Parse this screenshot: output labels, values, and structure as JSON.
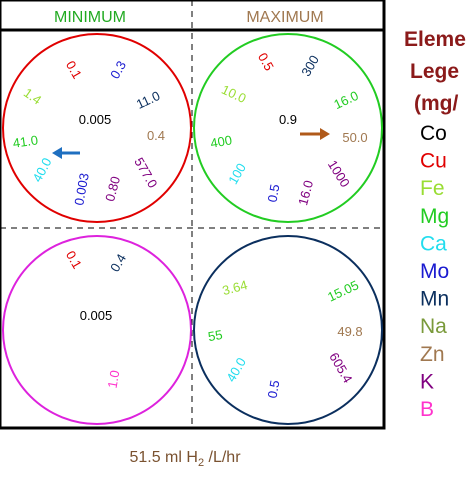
{
  "header": {
    "minimum": "MINIMUM",
    "maximum": "MAXIMUM"
  },
  "legend": {
    "title_lines": [
      "Eleme",
      "Lege",
      "(mg/"
    ],
    "items": [
      {
        "label": "Co",
        "color": "#000000"
      },
      {
        "label": "Cu",
        "color": "#e00000"
      },
      {
        "label": "Fe",
        "color": "#99dd33"
      },
      {
        "label": "Mg",
        "color": "#22cc22"
      },
      {
        "label": "Ca",
        "color": "#22ddee"
      },
      {
        "label": "Mo",
        "color": "#1a1ad0"
      },
      {
        "label": "Mn",
        "color": "#0b2f5e"
      },
      {
        "label": "Na",
        "color": "#7a9a3a"
      },
      {
        "label": "Zn",
        "color": "#a07850"
      },
      {
        "label": "K",
        "color": "#800080"
      },
      {
        "label": "B",
        "color": "#ff33cc"
      }
    ]
  },
  "footer": {
    "flow_prefix": "51.5 ml H",
    "flow_sub": "2",
    "flow_suffix": " /L/hr"
  },
  "circles": {
    "top_left": {
      "ring_color": "#e00000",
      "values": {
        "cu": "0.1",
        "mo": "0.3",
        "fe": "1.4",
        "mn": "11.0",
        "co": "0.005",
        "mg": "41.0",
        "zn": "0.4",
        "ca": "40.0",
        "na": "577.0",
        "mo2": "0.003",
        "k": "0.80"
      },
      "arrow": {
        "direction": "left",
        "color": "#1f6fc0"
      }
    },
    "top_right": {
      "ring_color": "#22cc22",
      "values": {
        "cu": "0.5",
        "mn": "300",
        "fe": "10.0",
        "mg": "16.0",
        "mg2": "400",
        "co": "0.9",
        "zn": "50.0",
        "ca": "100",
        "na": "1000",
        "mo": "0.5",
        "k": "16.0"
      },
      "arrow": {
        "direction": "right",
        "color": "#b05a1a"
      }
    },
    "bottom_left": {
      "ring_color": "#dd22dd",
      "values": {
        "cu": "0.1",
        "mn": "0.4",
        "co": "0.005",
        "b": "1.0"
      }
    },
    "bottom_right": {
      "ring_color": "#0b2f5e",
      "values": {
        "fe": "3.64",
        "mg": "15.05",
        "mg2": "55",
        "zn": "49.8",
        "ca": "40.0",
        "k": "605.4",
        "mo": "0.5"
      }
    }
  }
}
